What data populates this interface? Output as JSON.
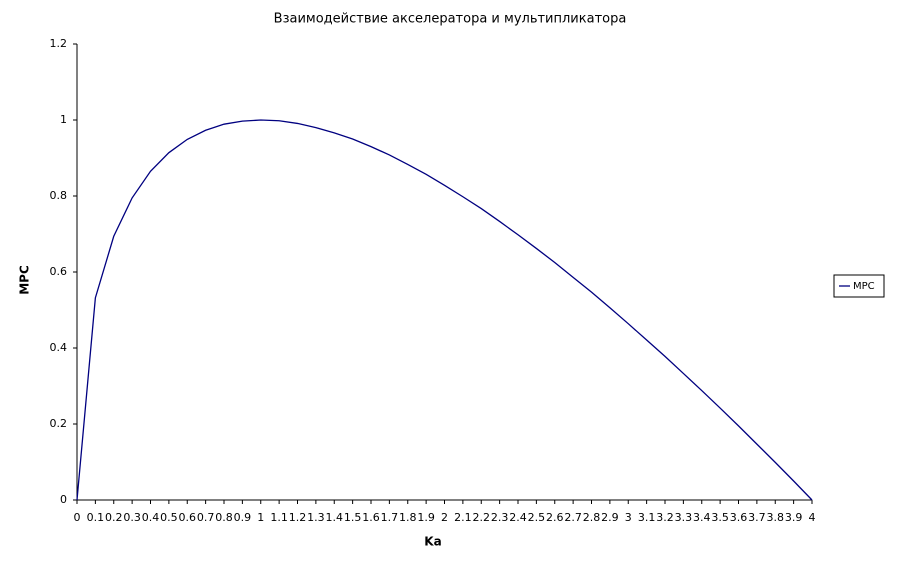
{
  "chart_data": {
    "type": "line",
    "title": "Взаимодействие акселератора и мультипликатора",
    "xlabel": "Ka",
    "ylabel": "MPC",
    "x": [
      0,
      0.1,
      0.2,
      0.3,
      0.4,
      0.5,
      0.6,
      0.7,
      0.8,
      0.9,
      1,
      1.1,
      1.2,
      1.3,
      1.4,
      1.5,
      1.6,
      1.7,
      1.8,
      1.9,
      2,
      2.1,
      2.2,
      2.3,
      2.4,
      2.5,
      2.6,
      2.7,
      2.8,
      2.9,
      3,
      3.1,
      3.2,
      3.3,
      3.4,
      3.5,
      3.6,
      3.7,
      3.8,
      3.9,
      4
    ],
    "series": [
      {
        "name": "MPC",
        "color": "#000080",
        "values": [
          0,
          0.532,
          0.694,
          0.795,
          0.865,
          0.914,
          0.949,
          0.973,
          0.989,
          0.997,
          1,
          0.998,
          0.991,
          0.98,
          0.966,
          0.95,
          0.93,
          0.908,
          0.883,
          0.857,
          0.828,
          0.798,
          0.767,
          0.733,
          0.698,
          0.662,
          0.625,
          0.586,
          0.547,
          0.506,
          0.464,
          0.421,
          0.378,
          0.333,
          0.288,
          0.242,
          0.195,
          0.147,
          0.099,
          0.05,
          0
        ]
      }
    ],
    "xlim": [
      0,
      4
    ],
    "xticks": [
      0,
      0.1,
      0.2,
      0.3,
      0.4,
      0.5,
      0.6,
      0.7,
      0.8,
      0.9,
      1,
      1.1,
      1.2,
      1.3,
      1.4,
      1.5,
      1.6,
      1.7,
      1.8,
      1.9,
      2,
      2.1,
      2.2,
      2.3,
      2.4,
      2.5,
      2.6,
      2.7,
      2.8,
      2.9,
      3,
      3.1,
      3.2,
      3.3,
      3.4,
      3.5,
      3.6,
      3.7,
      3.8,
      3.9,
      4
    ],
    "ylim": [
      0,
      1.2
    ],
    "yticks": [
      0,
      0.2,
      0.4,
      0.6,
      0.8,
      1,
      1.2
    ],
    "grid": false,
    "legend": "right"
  }
}
